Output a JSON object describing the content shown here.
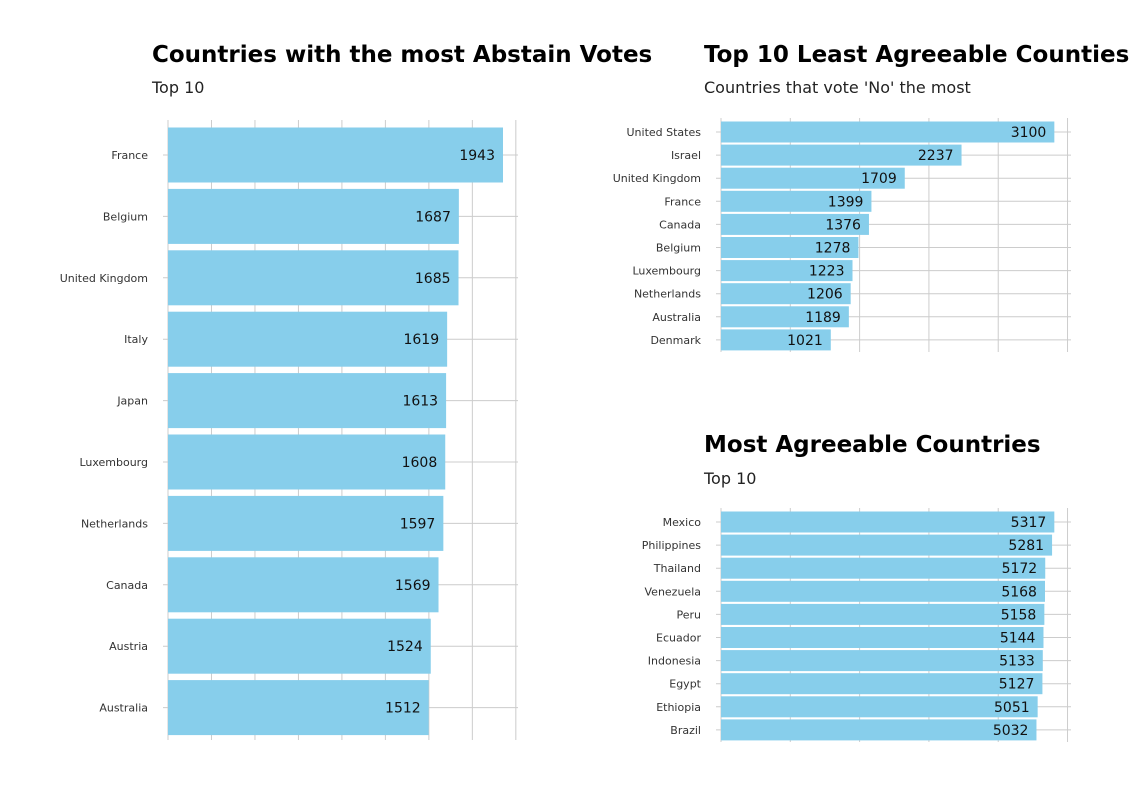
{
  "colors": {
    "bar": "#87CEEB",
    "grid": "#cccccc"
  },
  "chart_data": [
    {
      "type": "bar",
      "orientation": "horizontal",
      "title": "Countries with the most Abstain Votes",
      "subtitle": "Top 10",
      "categories": [
        "France",
        "Belgium",
        "United Kingdom",
        "Italy",
        "Japan",
        "Luxembourg",
        "Netherlands",
        "Canada",
        "Austria",
        "Australia"
      ],
      "values": [
        1943,
        1687,
        1685,
        1619,
        1613,
        1608,
        1597,
        1569,
        1524,
        1512
      ],
      "xlim": [
        0,
        2030
      ],
      "grid": true,
      "data_labels": true
    },
    {
      "type": "bar",
      "orientation": "horizontal",
      "title": "Top 10 Least Agreeable Counties",
      "subtitle": "Countries that vote 'No' the most",
      "categories": [
        "United States",
        "Israel",
        "United Kingdom",
        "France",
        "Canada",
        "Belgium",
        "Luxembourg",
        "Netherlands",
        "Australia",
        "Denmark"
      ],
      "values": [
        3100,
        2237,
        1709,
        1399,
        1376,
        1278,
        1223,
        1206,
        1189,
        1021
      ],
      "xlim": [
        0,
        3255
      ],
      "grid": true,
      "data_labels": true
    },
    {
      "type": "bar",
      "orientation": "horizontal",
      "title": "Most Agreeable Countries",
      "subtitle": "Top 10",
      "categories": [
        "Mexico",
        "Philippines",
        "Thailand",
        "Venezuela",
        "Peru",
        "Ecuador",
        "Indonesia",
        "Egypt",
        "Ethiopia",
        "Brazil"
      ],
      "values": [
        5317,
        5281,
        5172,
        5168,
        5158,
        5144,
        5133,
        5127,
        5051,
        5032
      ],
      "xlim": [
        0,
        5583
      ],
      "grid": true,
      "data_labels": true
    }
  ]
}
